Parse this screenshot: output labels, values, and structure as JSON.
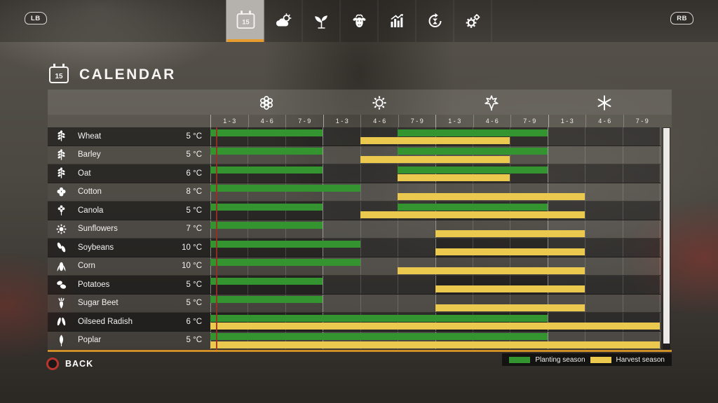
{
  "nav": {
    "lb_label": "LB",
    "rb_label": "RB",
    "tabs": [
      {
        "id": "calendar",
        "icon": "calendar-icon",
        "badge": "15",
        "active": true
      },
      {
        "id": "weather",
        "icon": "weather-icon",
        "active": false
      },
      {
        "id": "crops",
        "icon": "seedling-icon",
        "active": false
      },
      {
        "id": "animals",
        "icon": "cow-icon",
        "active": false
      },
      {
        "id": "statistics",
        "icon": "bar-chart-icon",
        "active": false
      },
      {
        "id": "crop-rotation",
        "icon": "rotation-arrows-icon",
        "active": false
      },
      {
        "id": "settings",
        "icon": "gears-icon",
        "active": false
      }
    ]
  },
  "header": {
    "title": "CALENDAR",
    "calendar_day": "15"
  },
  "legend": {
    "planting_label": "Planting season",
    "harvest_label": "Harvest season"
  },
  "footer": {
    "back_label": "BACK"
  },
  "colors": {
    "planting_green": "#349430",
    "harvest_yellow": "#ebc94f",
    "accent_orange": "#e79c2f",
    "today_marker_red": "#9e2d24"
  },
  "chart_data": {
    "type": "gantt",
    "title": "Crop planting and harvest calendar",
    "seasons": [
      {
        "name": "spring",
        "icon": "blossom-icon"
      },
      {
        "name": "summer",
        "icon": "sun-icon"
      },
      {
        "name": "autumn",
        "icon": "maple-leaf-icon"
      },
      {
        "name": "winter",
        "icon": "snowflake-icon"
      }
    ],
    "period_labels": [
      "1 - 3",
      "4 - 6",
      "7 - 9"
    ],
    "columns_per_season": 3,
    "total_columns": 12,
    "today_marker_col": 0.15,
    "legend": {
      "green": "Planting season",
      "yellow": "Harvest season"
    },
    "crops": [
      {
        "name": "Wheat",
        "germination_temp": "5 °C",
        "icon": "wheat-icon",
        "planting_cols": [
          [
            0,
            3
          ],
          [
            5,
            9
          ]
        ],
        "harvest_cols": [
          [
            4,
            8
          ]
        ]
      },
      {
        "name": "Barley",
        "germination_temp": "5 °C",
        "icon": "barley-icon",
        "planting_cols": [
          [
            0,
            3
          ],
          [
            5,
            9
          ]
        ],
        "harvest_cols": [
          [
            4,
            8
          ]
        ]
      },
      {
        "name": "Oat",
        "germination_temp": "6 °C",
        "icon": "oat-icon",
        "planting_cols": [
          [
            0,
            3
          ],
          [
            5,
            9
          ]
        ],
        "harvest_cols": [
          [
            5,
            8
          ]
        ]
      },
      {
        "name": "Cotton",
        "germination_temp": "8 °C",
        "icon": "cotton-icon",
        "planting_cols": [
          [
            0,
            4
          ]
        ],
        "harvest_cols": [
          [
            5,
            10
          ]
        ]
      },
      {
        "name": "Canola",
        "germination_temp": "5 °C",
        "icon": "canola-icon",
        "planting_cols": [
          [
            0,
            3
          ],
          [
            5,
            9
          ]
        ],
        "harvest_cols": [
          [
            4,
            10
          ]
        ]
      },
      {
        "name": "Sunflowers",
        "germination_temp": "7 °C",
        "icon": "sunflower-icon",
        "planting_cols": [
          [
            0,
            3
          ]
        ],
        "harvest_cols": [
          [
            6,
            10
          ]
        ]
      },
      {
        "name": "Soybeans",
        "germination_temp": "10 °C",
        "icon": "soybeans-icon",
        "planting_cols": [
          [
            0,
            4
          ]
        ],
        "harvest_cols": [
          [
            6,
            10
          ]
        ]
      },
      {
        "name": "Corn",
        "germination_temp": "10 °C",
        "icon": "corn-icon",
        "planting_cols": [
          [
            0,
            4
          ]
        ],
        "harvest_cols": [
          [
            5,
            10
          ]
        ]
      },
      {
        "name": "Potatoes",
        "germination_temp": "5 °C",
        "icon": "potatoes-icon",
        "planting_cols": [
          [
            0,
            3
          ]
        ],
        "harvest_cols": [
          [
            6,
            10
          ]
        ]
      },
      {
        "name": "Sugar Beet",
        "germination_temp": "5 °C",
        "icon": "sugar-beet-icon",
        "planting_cols": [
          [
            0,
            3
          ]
        ],
        "harvest_cols": [
          [
            6,
            10
          ]
        ]
      },
      {
        "name": "Oilseed Radish",
        "germination_temp": "6 °C",
        "icon": "oilseed-radish-icon",
        "planting_cols": [
          [
            0,
            9
          ]
        ],
        "harvest_cols": [
          [
            0,
            12
          ]
        ]
      },
      {
        "name": "Poplar",
        "germination_temp": "5 °C",
        "icon": "poplar-icon",
        "planting_cols": [
          [
            0,
            9
          ]
        ],
        "harvest_cols": [
          [
            0,
            12
          ]
        ]
      }
    ]
  }
}
